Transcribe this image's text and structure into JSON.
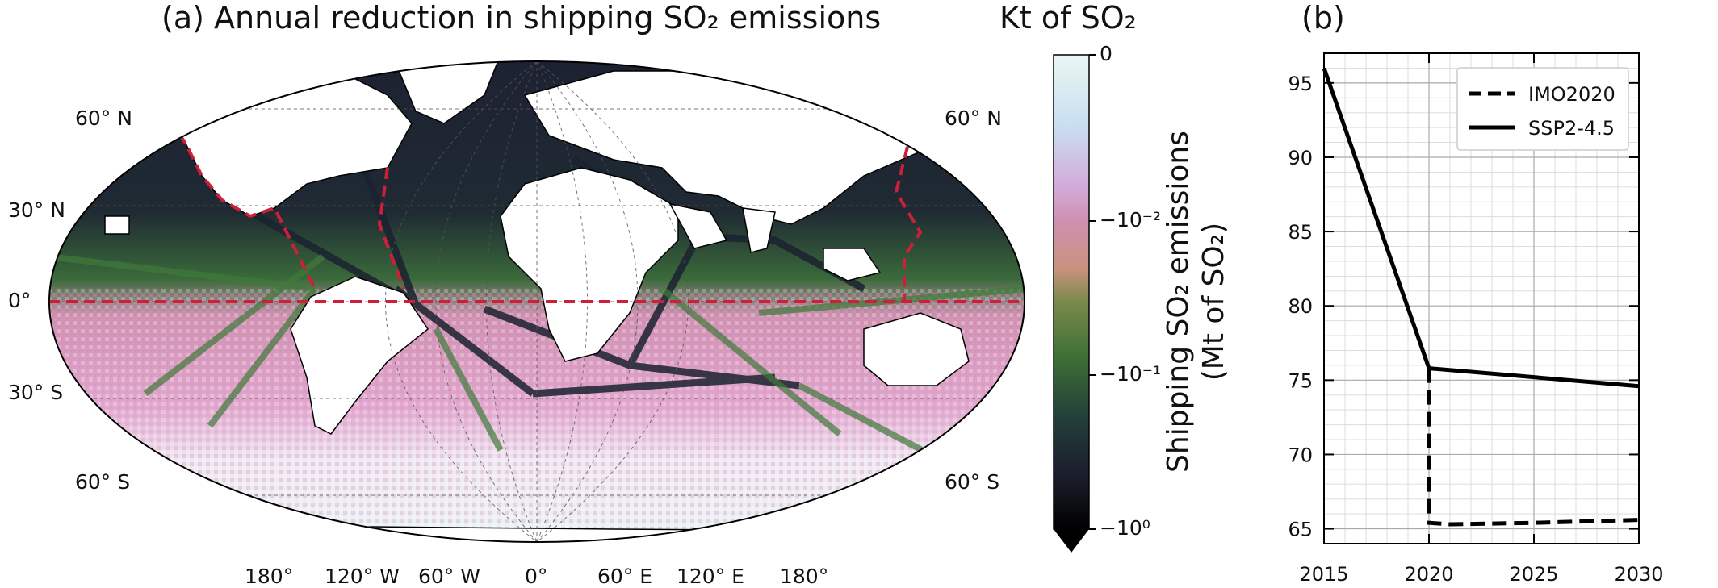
{
  "chart_data": [
    {
      "type": "heatmap",
      "panel": "(a)",
      "title": "(a) Annual reduction in shipping SO₂ emissions",
      "projection": "Robinson (global map)",
      "colorbar": {
        "title": "Kt of SO₂",
        "scale": "symlog",
        "ticks": [
          "0",
          "−10⁻²",
          "−10⁻¹",
          "−10⁰"
        ],
        "tick_values": [
          0,
          -0.01,
          -0.1,
          -1
        ],
        "colormap_colors": [
          "#e9f7f4",
          "#c8e0ee",
          "#d7a8d4",
          "#cf8fb0",
          "#7a8a4a",
          "#3d6f34",
          "#23403a",
          "#1d1f2e",
          "#000000"
        ],
        "extend": "min"
      },
      "lat_labels_left": [
        "60° N",
        "30° N",
        "0°",
        "30° S",
        "60° S"
      ],
      "lat_labels_right": [
        "60° N",
        "60° S"
      ],
      "lon_labels": [
        "180°",
        "120° W",
        "60° W",
        "0°",
        "60° E",
        "120° E",
        "180°"
      ],
      "region_outline": {
        "style": "dashed",
        "color": "#cc1f3a",
        "region": "ECA boundaries and 0° latitude line"
      },
      "colors": {
        "ocean_intense": "#1d1f2e",
        "ocean_mid": "#3d6f34",
        "ocean_light": "#cf8fb0",
        "land": "#ffffff",
        "southern_ocean": "#e9f7f4",
        "dashed": "#cc1f3a"
      }
    },
    {
      "type": "line",
      "panel": "(b)",
      "title": "(b)",
      "ylabel_line1": "Shipping SO₂ emissions",
      "ylabel_line2": "(Mt of SO₂)",
      "xlim": [
        2015,
        2030
      ],
      "ylim": [
        64,
        97
      ],
      "xticks": [
        2015,
        2020,
        2025,
        2030
      ],
      "yticks": [
        65,
        70,
        75,
        80,
        85,
        90,
        95
      ],
      "grid": true,
      "legend_position": "upper right",
      "series": [
        {
          "name": "IMO2020",
          "style": "dashed",
          "color": "#000000",
          "x": [
            2020,
            2020,
            2021,
            2025,
            2030
          ],
          "y": [
            75.8,
            65.4,
            65.3,
            65.4,
            65.6
          ]
        },
        {
          "name": "SSP2-4.5",
          "style": "solid",
          "color": "#000000",
          "x": [
            2015,
            2020,
            2025,
            2030
          ],
          "y": [
            96.0,
            75.8,
            75.2,
            74.6
          ]
        }
      ]
    }
  ]
}
